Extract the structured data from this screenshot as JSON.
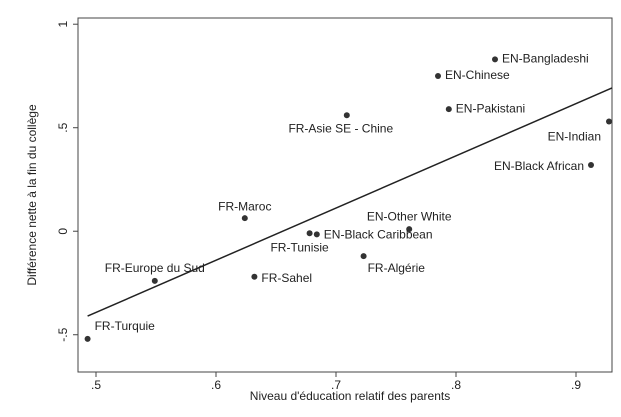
{
  "chart_data": {
    "type": "scatter",
    "xlabel": "Niveau d'éducation relatif des parents",
    "ylabel": "Différence nette à la fin du collège",
    "labels": [
      "EN-Bangladeshi",
      "EN-Chinese",
      "EN-Pakistani",
      "FR-Asie SE - Chine",
      "EN-Indian",
      "EN-Black African",
      "FR-Maroc",
      "EN-Other White",
      "FR-Tunisie",
      "EN-Black Caribbean",
      "FR-Algérie",
      "FR-Europe du Sud",
      "FR-Sahel",
      "FR-Turquie"
    ],
    "x": [
      0.8325,
      0.785,
      0.794,
      0.709,
      0.9275,
      0.9125,
      0.624,
      0.761,
      0.678,
      0.684,
      0.723,
      0.549,
      0.632,
      0.493
    ],
    "y": [
      0.83,
      0.75,
      0.59,
      0.56,
      0.53,
      0.32,
      0.063,
      0.01,
      -0.01,
      -0.015,
      -0.12,
      -0.24,
      -0.22,
      -0.52
    ],
    "fit_line": {
      "x": [
        0.493,
        0.93
      ],
      "y": [
        -0.41,
        0.692
      ]
    },
    "color": "#333333",
    "xlim": [
      0.485,
      0.93
    ],
    "ylim": [
      -0.68,
      1.03
    ],
    "xticks": [
      {
        "value": 0.5,
        "label": ".5"
      },
      {
        "value": 0.6,
        "label": ".6"
      },
      {
        "value": 0.7,
        "label": ".7"
      },
      {
        "value": 0.8,
        "label": ".8"
      },
      {
        "value": 0.9,
        "label": ".9"
      }
    ],
    "yticks": [
      {
        "value": -0.5,
        "label": "-.5"
      },
      0,
      {
        "value": 0.5,
        "label": ".5"
      },
      1
    ]
  }
}
